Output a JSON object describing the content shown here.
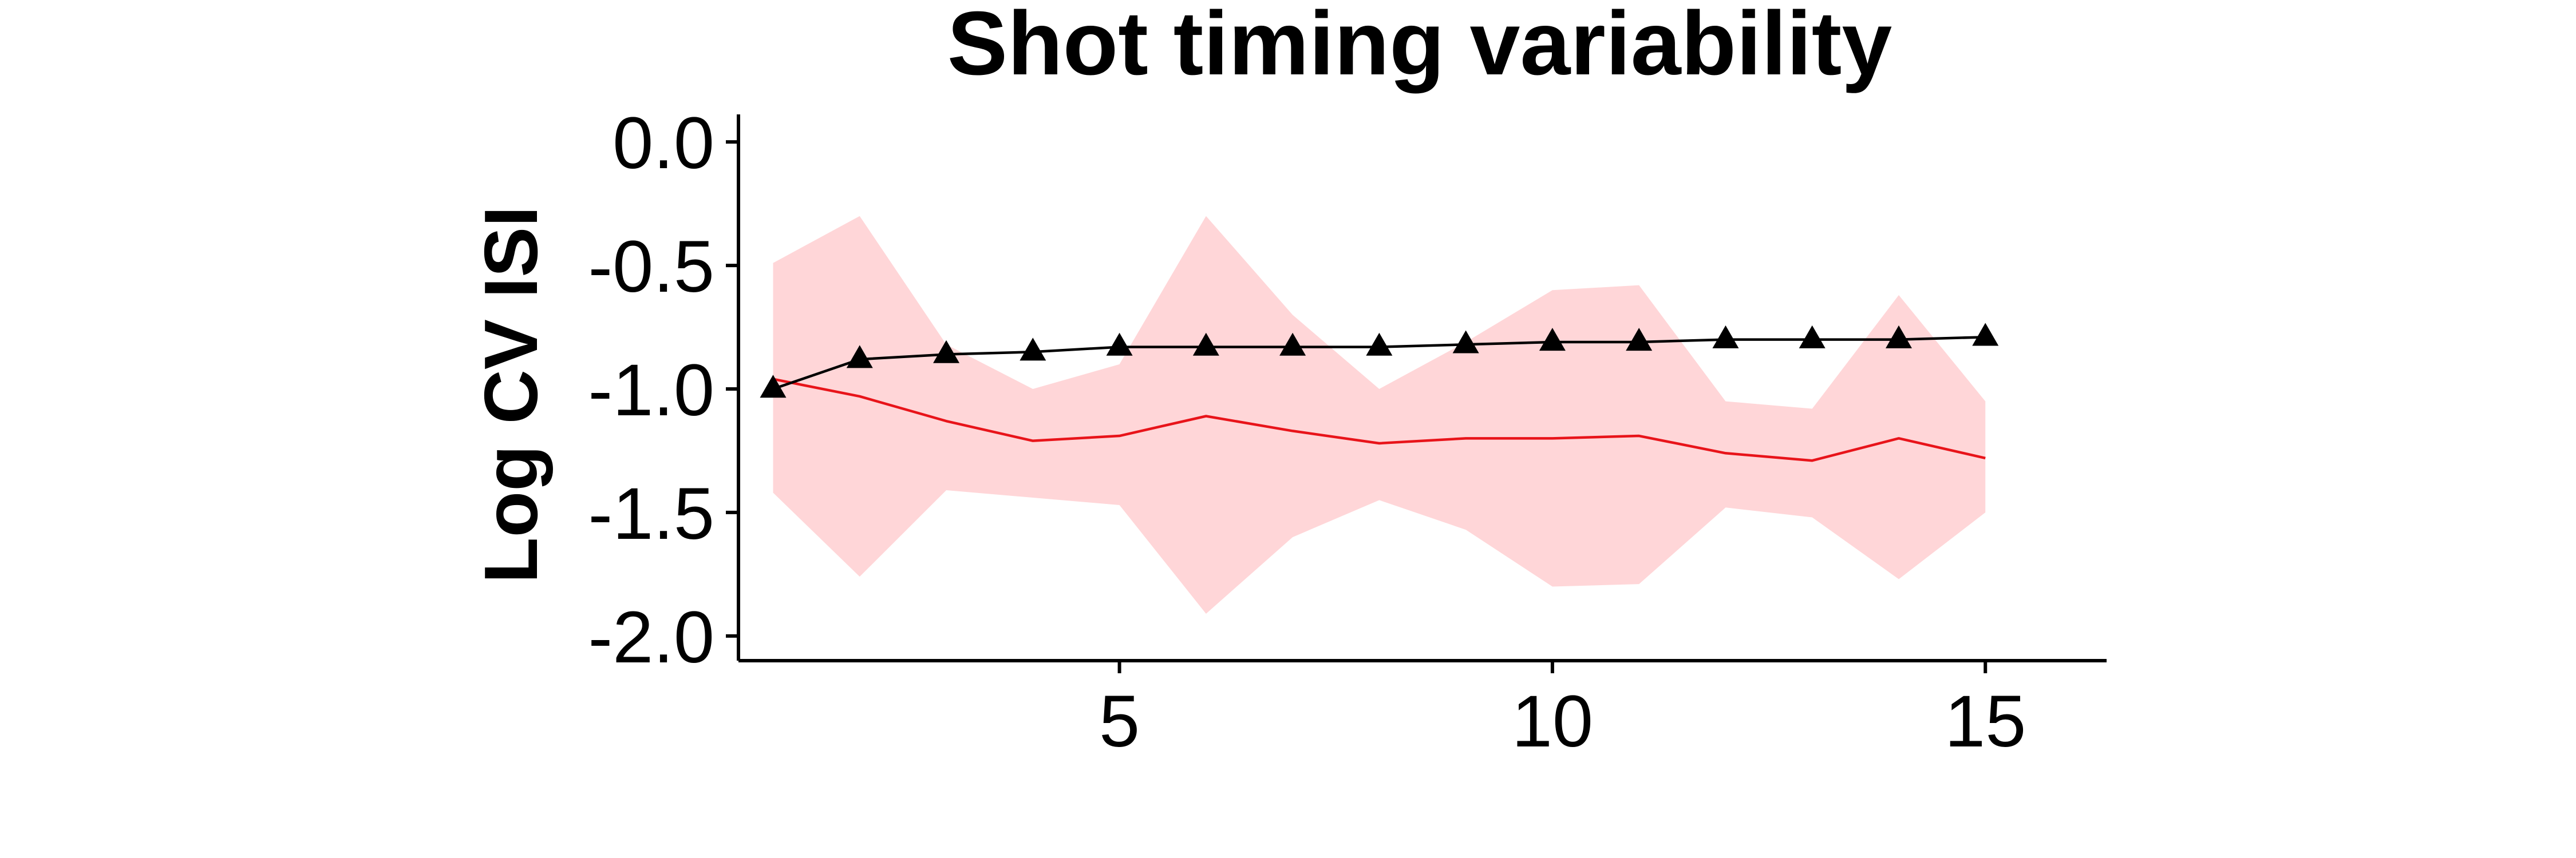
{
  "chart_data": {
    "type": "line",
    "title": "Shot timing variability",
    "xlabel": "",
    "ylabel": "Log CV ISI",
    "xlim": [
      0.6,
      16.4
    ],
    "ylim": [
      -2.1,
      0.1
    ],
    "x_ticks": [
      5,
      10,
      15
    ],
    "x_tick_labels": [
      "5",
      "10",
      "15"
    ],
    "y_ticks": [
      0.0,
      -0.5,
      -1.0,
      -1.5,
      -2.0
    ],
    "y_tick_labels": [
      "0.0",
      "-0.5",
      "-1.0",
      "-1.5",
      "-2.0"
    ],
    "grid": false,
    "x": [
      1,
      2,
      3,
      4,
      5,
      6,
      7,
      8,
      9,
      10,
      11,
      12,
      13,
      14,
      15
    ],
    "band": {
      "color": "#ffd6d8",
      "upper": [
        -0.49,
        -0.3,
        -0.82,
        -1.0,
        -0.9,
        -0.3,
        -0.7,
        -1.0,
        -0.81,
        -0.6,
        -0.58,
        -1.05,
        -1.08,
        -0.62,
        -1.05
      ],
      "lower": [
        -1.42,
        -1.76,
        -1.41,
        -1.44,
        -1.47,
        -1.91,
        -1.6,
        -1.45,
        -1.57,
        -1.8,
        -1.79,
        -1.48,
        -1.52,
        -1.77,
        -1.5
      ]
    },
    "series": [
      {
        "color": "#e8141a",
        "marker": "none",
        "values": [
          -0.96,
          -1.03,
          -1.13,
          -1.21,
          -1.19,
          -1.11,
          -1.17,
          -1.22,
          -1.2,
          -1.2,
          -1.19,
          -1.26,
          -1.29,
          -1.2,
          -1.28
        ]
      },
      {
        "color": "#000000",
        "marker": "triangle",
        "values": [
          -1.0,
          -0.88,
          -0.86,
          -0.85,
          -0.83,
          -0.83,
          -0.83,
          -0.83,
          -0.82,
          -0.81,
          -0.81,
          -0.8,
          -0.8,
          -0.8,
          -0.79
        ]
      }
    ]
  }
}
